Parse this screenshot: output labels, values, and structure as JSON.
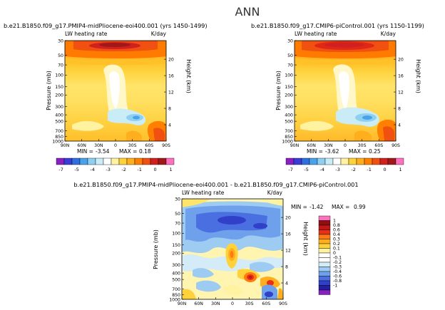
{
  "figure_title": "ANN",
  "chart_data": [
    {
      "type": "heatmap",
      "title": "b.e21.B1850.f09_g17.PMIP4-midPliocene-eoi400.001  (yrs 1450-1499)",
      "subtitle_left": "LW heating rate",
      "subtitle_right": "K/day",
      "ylabel": "Pressure (mb)",
      "ylabel_right": "Height (km)",
      "x_ticks": [
        "90N",
        "60N",
        "30N",
        "0",
        "30S",
        "60S",
        "90S"
      ],
      "y_ticks": [
        "1000",
        "850",
        "700",
        "500",
        "400",
        "300",
        "200",
        "150",
        "100",
        "70",
        "50",
        "30"
      ],
      "y_ticks_right": [
        "4",
        "8",
        "12",
        "16",
        "20"
      ],
      "stats": {
        "min_label": "MIN =",
        "min": "-3.54",
        "max_label": "MAX =",
        "max": "0.18"
      },
      "colorbar_labels": [
        "-7",
        "-5",
        "-4",
        "-3",
        "-2",
        "-1",
        "0",
        "1"
      ]
    },
    {
      "type": "heatmap",
      "title": "b.e21.B1850.f09_g17.CMIP6-piControl.001  (yrs 1150-1199)",
      "subtitle_left": "LW heating rate",
      "subtitle_right": "K/day",
      "ylabel": "Pressure (mb)",
      "ylabel_right": "Height (km)",
      "x_ticks": [
        "90N",
        "60N",
        "30N",
        "0",
        "30S",
        "60S",
        "90S"
      ],
      "y_ticks": [
        "1000",
        "850",
        "700",
        "500",
        "400",
        "300",
        "200",
        "150",
        "100",
        "70",
        "50",
        "30"
      ],
      "y_ticks_right": [
        "4",
        "8",
        "12",
        "16",
        "20"
      ],
      "stats": {
        "min_label": "MIN =",
        "min": "-3.62",
        "max_label": "MAX =",
        "max": "0.25"
      },
      "colorbar_labels": [
        "-7",
        "-5",
        "-4",
        "-3",
        "-2",
        "-1",
        "0",
        "1"
      ]
    },
    {
      "type": "heatmap",
      "title": "b.e21.B1850.f09_g17.PMIP4-midPliocene-eoi400.001  -  b.e21.B1850.f09_g17.CMIP6-piControl.001",
      "subtitle_left": "LW heating rate",
      "subtitle_right": "K/day",
      "ylabel": "Pressure (mb)",
      "ylabel_right": "Height (km)",
      "x_ticks": [
        "90N",
        "60N",
        "30N",
        "0",
        "30S",
        "60S",
        "90S"
      ],
      "y_ticks": [
        "1000",
        "850",
        "700",
        "500",
        "400",
        "300",
        "200",
        "150",
        "100",
        "70",
        "50",
        "30"
      ],
      "y_ticks_right": [
        "4",
        "8",
        "12",
        "16",
        "20"
      ],
      "stats": {
        "min_label": "MIN =",
        "min": "-1.42",
        "max_label": "MAX =",
        "max": "0.99"
      },
      "colorbar_labels": [
        "1",
        "0.8",
        "0.6",
        "0.4",
        "0.3",
        "0.2",
        "0.1",
        "0",
        "-0.1",
        "-0.2",
        "-0.3",
        "-0.4",
        "-0.6",
        "-0.8",
        "-1"
      ]
    }
  ],
  "colors": {
    "abs_scale": [
      "#8a1fc4",
      "#3b3bd6",
      "#2f6fe0",
      "#4aa3ea",
      "#8fd0f2",
      "#c9ecf7",
      "#ffffff",
      "#fff2a0",
      "#ffd23c",
      "#ffae1e",
      "#ff8000",
      "#f05010",
      "#d02020",
      "#a01818",
      "#ff70c0"
    ],
    "diff_scale": [
      "#8a1fc4",
      "#2020a0",
      "#3040c8",
      "#4a6fe0",
      "#6fa0ec",
      "#9ecbf2",
      "#d3ecf8",
      "#ffffff",
      "#ffffff",
      "#fff2a0",
      "#ffd23c",
      "#ffae1e",
      "#ff7a10",
      "#e83018",
      "#c01818",
      "#901010",
      "#ff70c0"
    ]
  }
}
